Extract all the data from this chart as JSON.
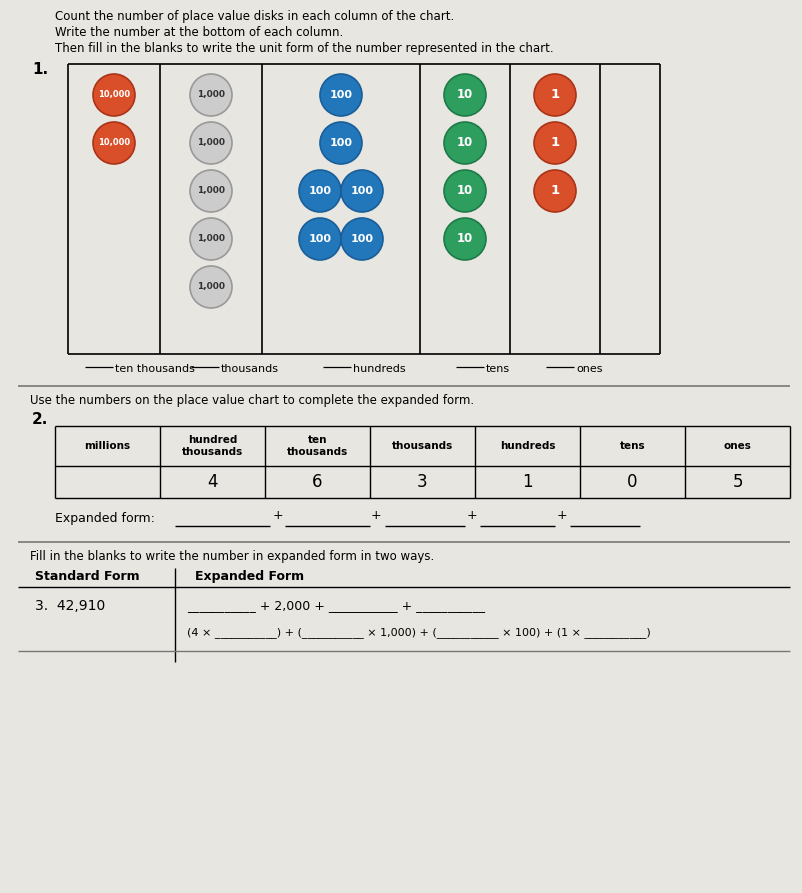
{
  "bg_color": "#e8e6e0",
  "title_lines": [
    "Count the number of place value disks in each column of the chart.",
    "Write the number at the bottom of each column.",
    "Then fill in the blanks to write the unit form of the number represented in the chart."
  ],
  "problem1_label": "1.",
  "disk_columns": [
    {
      "label": "ten thousands",
      "text": "10,000",
      "color": "#d94f2a",
      "edge": "#aa3318",
      "tcolor": "white",
      "fsize": 6.0,
      "count": 2,
      "layout": "single"
    },
    {
      "label": "thousands",
      "text": "1,000",
      "color": "#cccccc",
      "edge": "#999999",
      "tcolor": "#333333",
      "fsize": 6.5,
      "count": 5,
      "layout": "single"
    },
    {
      "label": "hundreds",
      "text": "100",
      "color": "#2277bb",
      "edge": "#1a5e99",
      "tcolor": "white",
      "fsize": 8.0,
      "count": 6,
      "layout": "pairs"
    },
    {
      "label": "tens",
      "text": "10",
      "color": "#2e9e5e",
      "edge": "#1e7a48",
      "tcolor": "white",
      "fsize": 8.5,
      "count": 4,
      "layout": "single"
    },
    {
      "label": "ones",
      "text": "1",
      "color": "#d94f2a",
      "edge": "#aa3318",
      "tcolor": "white",
      "fsize": 9.5,
      "count": 3,
      "layout": "single"
    }
  ],
  "unit_labels": [
    "ten thousands",
    "thousands",
    "hundreds",
    "tens",
    "ones"
  ],
  "problem2_label": "2.",
  "use_numbers_text": "Use the numbers on the place value chart to complete the expanded form.",
  "table_headers": [
    "millions",
    "hundred\nthousands",
    "ten\nthousands",
    "thousands",
    "hundreds",
    "tens",
    "ones"
  ],
  "table_values": [
    "",
    "4",
    "6",
    "3",
    "1",
    "0",
    "5"
  ],
  "expanded_form_label": "Expanded form:",
  "problem3_intro": "Fill in the blanks to write the number in expanded form in two ways.",
  "sf_header": "Standard Form",
  "ef_header": "Expanded Form",
  "row3_num": "3.  42,910",
  "row3_line1": "___________ + 2,000 + ___________ + ___________",
  "row3_line2": "(4 × ___________) + (___________ × 1,000) + (___________ × 100) + (1 × ___________)"
}
